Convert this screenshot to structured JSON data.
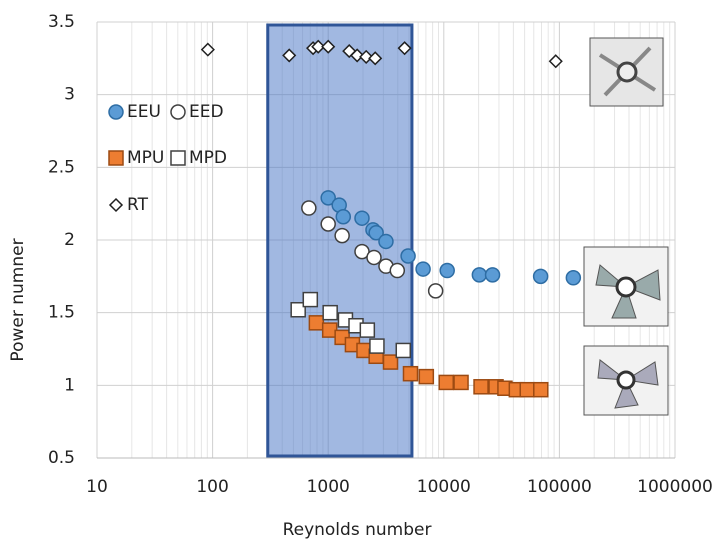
{
  "chart_data": {
    "type": "scatter",
    "xlabel": "Reynolds number",
    "ylabel": "Power numner",
    "xscale": "log",
    "xlim": [
      10,
      1000000
    ],
    "ylim": [
      0.5,
      3.5
    ],
    "xticks": [
      10,
      100,
      1000,
      10000,
      100000,
      1000000
    ],
    "yticks": [
      0.5,
      1,
      1.5,
      2,
      2.5,
      3,
      3.5
    ],
    "grid": true,
    "minor_grid": true,
    "legend": "upper left",
    "shaded_region": {
      "xlim": [
        300,
        5300
      ],
      "color": "#4472c4",
      "edgecolor": "#2f5597"
    },
    "series": [
      {
        "name": "EEU",
        "marker": "circle",
        "color": "#5b9bd5",
        "edgecolor": "#2e6da4",
        "x": [
          1000,
          1245,
          1350,
          1960,
          2440,
          2600,
          3160,
          4910,
          6620,
          10700,
          20300,
          26400,
          68800,
          132000
        ],
        "values": [
          2.29,
          2.24,
          2.16,
          2.15,
          2.07,
          2.05,
          1.99,
          1.89,
          1.8,
          1.79,
          1.76,
          1.76,
          1.75,
          1.74
        ]
      },
      {
        "name": "EED",
        "marker": "circle",
        "color": "#ffffff",
        "edgecolor": "#404040",
        "x": [
          680,
          1000,
          1320,
          1960,
          2490,
          3160,
          3960,
          8500
        ],
        "values": [
          2.22,
          2.11,
          2.03,
          1.92,
          1.88,
          1.82,
          1.79,
          1.65
        ]
      },
      {
        "name": "MPU",
        "marker": "square",
        "color": "#ed7d31",
        "edgecolor": "#9c4a12",
        "x": [
          790,
          1030,
          1320,
          1620,
          2040,
          2600,
          3460,
          5150,
          7060,
          10500,
          14100,
          21000,
          28300,
          33800,
          42400,
          52700,
          69000
        ],
        "values": [
          1.43,
          1.38,
          1.33,
          1.28,
          1.24,
          1.2,
          1.16,
          1.08,
          1.06,
          1.02,
          1.02,
          0.99,
          0.99,
          0.98,
          0.97,
          0.97,
          0.97
        ]
      },
      {
        "name": "MPD",
        "marker": "square",
        "color": "#ffffff",
        "edgecolor": "#404040",
        "x": [
          550,
          700,
          1040,
          1410,
          1740,
          2180,
          2640,
          4460
        ],
        "values": [
          1.52,
          1.59,
          1.5,
          1.45,
          1.41,
          1.38,
          1.27,
          1.24
        ]
      },
      {
        "name": "RT",
        "marker": "diamond",
        "color": "#ffffff",
        "edgecolor": "#202020",
        "x": [
          91,
          460,
          740,
          820,
          1000,
          1520,
          1780,
          2130,
          2550,
          4580,
          93000
        ],
        "values": [
          3.31,
          3.27,
          3.32,
          3.33,
          3.33,
          3.3,
          3.27,
          3.26,
          3.25,
          3.32,
          3.23
        ]
      }
    ]
  }
}
